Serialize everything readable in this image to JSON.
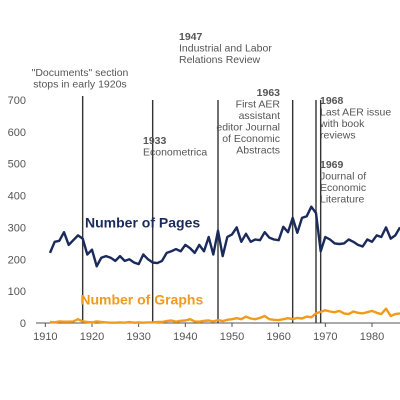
{
  "chart_data": {
    "type": "line",
    "title": "",
    "xlabel": "",
    "ylabel": "",
    "xlim": [
      1908,
      1986
    ],
    "ylim": [
      0,
      700
    ],
    "grid": false,
    "x_ticks": [
      "1910",
      "1920",
      "1930",
      "1940",
      "1950",
      "1960",
      "1970",
      "1980"
    ],
    "y_ticks": [
      "0",
      "100",
      "200",
      "300",
      "400",
      "500",
      "600",
      "700"
    ],
    "series": [
      {
        "name": "Number of Pages",
        "color": "#1a2a5a",
        "points": [
          [
            1911,
            220
          ],
          [
            1912,
            255
          ],
          [
            1913,
            258
          ],
          [
            1914,
            285
          ],
          [
            1915,
            245
          ],
          [
            1916,
            260
          ],
          [
            1917,
            275
          ],
          [
            1918,
            265
          ],
          [
            1919,
            215
          ],
          [
            1920,
            230
          ],
          [
            1921,
            178
          ],
          [
            1922,
            205
          ],
          [
            1923,
            210
          ],
          [
            1924,
            205
          ],
          [
            1925,
            195
          ],
          [
            1926,
            210
          ],
          [
            1927,
            195
          ],
          [
            1928,
            200
          ],
          [
            1929,
            190
          ],
          [
            1930,
            185
          ],
          [
            1931,
            215
          ],
          [
            1932,
            200
          ],
          [
            1933,
            190
          ],
          [
            1934,
            188
          ],
          [
            1935,
            195
          ],
          [
            1936,
            220
          ],
          [
            1937,
            225
          ],
          [
            1938,
            232
          ],
          [
            1939,
            225
          ],
          [
            1940,
            245
          ],
          [
            1941,
            235
          ],
          [
            1942,
            220
          ],
          [
            1943,
            245
          ],
          [
            1944,
            225
          ],
          [
            1945,
            270
          ],
          [
            1946,
            215
          ],
          [
            1947,
            290
          ],
          [
            1948,
            210
          ],
          [
            1949,
            270
          ],
          [
            1950,
            278
          ],
          [
            1951,
            300
          ],
          [
            1952,
            255
          ],
          [
            1953,
            280
          ],
          [
            1954,
            255
          ],
          [
            1955,
            262
          ],
          [
            1956,
            260
          ],
          [
            1957,
            285
          ],
          [
            1958,
            268
          ],
          [
            1959,
            262
          ],
          [
            1960,
            260
          ],
          [
            1961,
            302
          ],
          [
            1962,
            285
          ],
          [
            1963,
            330
          ],
          [
            1964,
            283
          ],
          [
            1965,
            330
          ],
          [
            1966,
            335
          ],
          [
            1967,
            365
          ],
          [
            1968,
            345
          ],
          [
            1969,
            225
          ],
          [
            1970,
            270
          ],
          [
            1971,
            262
          ],
          [
            1972,
            250
          ],
          [
            1973,
            248
          ],
          [
            1974,
            250
          ],
          [
            1975,
            262
          ],
          [
            1976,
            255
          ],
          [
            1977,
            245
          ],
          [
            1978,
            240
          ],
          [
            1979,
            262
          ],
          [
            1980,
            255
          ],
          [
            1981,
            275
          ],
          [
            1982,
            270
          ],
          [
            1983,
            300
          ],
          [
            1984,
            265
          ],
          [
            1985,
            275
          ],
          [
            1986,
            300
          ]
        ]
      },
      {
        "name": "Number of Graphs",
        "color": "#f29a1c",
        "points": [
          [
            1911,
            3
          ],
          [
            1912,
            2
          ],
          [
            1913,
            5
          ],
          [
            1914,
            4
          ],
          [
            1915,
            4
          ],
          [
            1916,
            5
          ],
          [
            1917,
            12
          ],
          [
            1918,
            5
          ],
          [
            1919,
            3
          ],
          [
            1920,
            2
          ],
          [
            1921,
            5
          ],
          [
            1922,
            3
          ],
          [
            1923,
            2
          ],
          [
            1924,
            1
          ],
          [
            1925,
            1
          ],
          [
            1926,
            2
          ],
          [
            1927,
            1
          ],
          [
            1928,
            3
          ],
          [
            1929,
            1
          ],
          [
            1930,
            2
          ],
          [
            1931,
            1
          ],
          [
            1932,
            2
          ],
          [
            1933,
            2
          ],
          [
            1934,
            3
          ],
          [
            1935,
            3
          ],
          [
            1936,
            6
          ],
          [
            1937,
            8
          ],
          [
            1938,
            4
          ],
          [
            1939,
            7
          ],
          [
            1940,
            8
          ],
          [
            1941,
            12
          ],
          [
            1942,
            5
          ],
          [
            1943,
            4
          ],
          [
            1944,
            7
          ],
          [
            1945,
            8
          ],
          [
            1946,
            5
          ],
          [
            1947,
            9
          ],
          [
            1948,
            6
          ],
          [
            1949,
            10
          ],
          [
            1950,
            12
          ],
          [
            1951,
            15
          ],
          [
            1952,
            12
          ],
          [
            1953,
            20
          ],
          [
            1954,
            14
          ],
          [
            1955,
            12
          ],
          [
            1956,
            16
          ],
          [
            1957,
            22
          ],
          [
            1958,
            12
          ],
          [
            1959,
            10
          ],
          [
            1960,
            9
          ],
          [
            1961,
            12
          ],
          [
            1962,
            15
          ],
          [
            1963,
            12
          ],
          [
            1964,
            16
          ],
          [
            1965,
            14
          ],
          [
            1966,
            20
          ],
          [
            1967,
            18
          ],
          [
            1968,
            30
          ],
          [
            1969,
            35
          ],
          [
            1970,
            40
          ],
          [
            1971,
            36
          ],
          [
            1972,
            34
          ],
          [
            1973,
            38
          ],
          [
            1974,
            30
          ],
          [
            1975,
            28
          ],
          [
            1976,
            36
          ],
          [
            1977,
            32
          ],
          [
            1978,
            30
          ],
          [
            1979,
            34
          ],
          [
            1980,
            38
          ],
          [
            1981,
            32
          ],
          [
            1982,
            28
          ],
          [
            1983,
            45
          ],
          [
            1984,
            22
          ],
          [
            1985,
            28
          ],
          [
            1986,
            30
          ]
        ]
      }
    ],
    "series_labels": [
      {
        "text": "Number of Pages",
        "x": 1918.5,
        "y": 300
      },
      {
        "text": "Number of Graphs",
        "x": 1917.5,
        "y": 58
      }
    ],
    "annotations": [
      {
        "year": 1918,
        "lines": [
          "\"Documents\" section",
          "stops in early 1920s"
        ],
        "bold": [],
        "color": "#444444"
      },
      {
        "year": 1933,
        "lines": [
          "1933",
          "Econometrica"
        ],
        "bold": [
          0
        ],
        "color": "#444444"
      },
      {
        "year": 1947,
        "lines": [
          "1947",
          "Industrial and Labor",
          "Relations Review"
        ],
        "bold": [
          0
        ],
        "color": "#444444"
      },
      {
        "year": 1963,
        "lines": [
          "1963",
          "First AER",
          "assistant",
          "editor Journal",
          "of Economic",
          "Abstracts"
        ],
        "bold": [
          0
        ],
        "color": "#444444"
      },
      {
        "year": 1968,
        "lines": [
          "1968",
          "Last AER issue",
          "with book",
          "reviews"
        ],
        "bold": [
          0
        ],
        "color": "#444444"
      },
      {
        "year": 1969,
        "lines": [
          "1969",
          "Journal of",
          "Economic",
          "Literature"
        ],
        "bold": [
          0
        ],
        "color": "#444444"
      }
    ]
  }
}
